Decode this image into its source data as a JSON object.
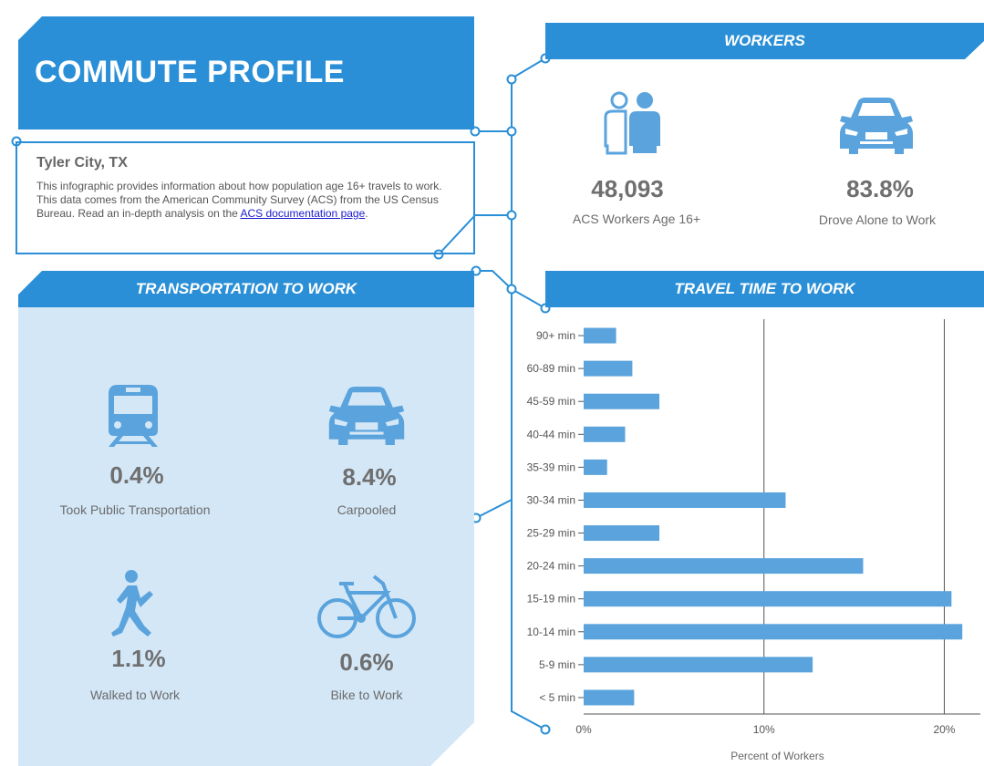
{
  "header": {
    "title": "COMMUTE PROFILE"
  },
  "info": {
    "place": "Tyler City, TX",
    "description": "This infographic provides information about how population age 16+ travels to work. This data comes from the American Community Survey (ACS) from the US Census Bureau. Read an in-depth analysis on the ",
    "link_text": "ACS documentation page",
    "trailing": "."
  },
  "workers": {
    "heading": "WORKERS",
    "stats": [
      {
        "value": "48,093",
        "label": "ACS Workers Age 16+",
        "icon": "people-icon"
      },
      {
        "value": "83.8%",
        "label": "Drove Alone to Work",
        "icon": "car-icon"
      }
    ]
  },
  "transportation": {
    "heading": "TRANSPORTATION TO WORK",
    "stats": [
      {
        "value": "0.4%",
        "label": "Took Public Transportation",
        "icon": "train-icon"
      },
      {
        "value": "8.4%",
        "label": "Carpooled",
        "icon": "car-icon"
      },
      {
        "value": "1.1%",
        "label": "Walked to Work",
        "icon": "walking-person-icon"
      },
      {
        "value": "0.6%",
        "label": "Bike to Work",
        "icon": "bicycle-icon"
      }
    ]
  },
  "colors": {
    "accent": "#2a8fd6",
    "bar": "#5aa3dc",
    "panel": "#d4e7f7"
  },
  "chart_data": {
    "type": "bar",
    "orientation": "horizontal",
    "title": "TRAVEL TIME TO WORK",
    "xlabel": "Percent of Workers",
    "categories": [
      "90+ min",
      "60-89 min",
      "45-59 min",
      "40-44 min",
      "35-39 min",
      "30-34 min",
      "25-29 min",
      "20-24 min",
      "15-19 min",
      "10-14 min",
      "5-9 min",
      "< 5 min"
    ],
    "values": [
      1.8,
      2.7,
      4.2,
      2.3,
      1.3,
      11.2,
      4.2,
      15.5,
      20.4,
      21.0,
      12.7,
      2.8
    ],
    "xlim": [
      0,
      22
    ],
    "xticks": [
      0,
      10,
      20
    ],
    "xtick_labels": [
      "0%",
      "10%",
      "20%"
    ],
    "grid": true
  }
}
